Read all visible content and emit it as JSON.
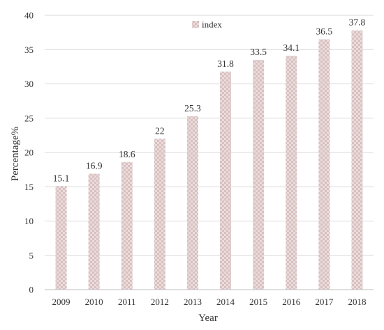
{
  "chart_data": {
    "type": "bar",
    "categories": [
      "2009",
      "2010",
      "2011",
      "2012",
      "2013",
      "2014",
      "2015",
      "2016",
      "2017",
      "2018"
    ],
    "series": [
      {
        "name": "index",
        "values": [
          15.1,
          16.9,
          18.6,
          22,
          25.3,
          31.8,
          33.5,
          34.1,
          36.5,
          37.8
        ],
        "labels": [
          "15.1",
          "16.9",
          "18.6",
          "22",
          "25.3",
          "31.8",
          "33.5",
          "34.1",
          "36.5",
          "37.8"
        ]
      }
    ],
    "title": "",
    "xlabel": "Year",
    "ylabel": "Percentage%",
    "ylim": [
      0,
      40
    ],
    "yticks": [
      "0",
      "5",
      "10",
      "15",
      "20",
      "25",
      "30",
      "35",
      "40"
    ],
    "grid": "horizontal",
    "legend_position": "top-center"
  },
  "colors": {
    "bar_light": "#eadcdc",
    "bar_dark": "#c9a9a9",
    "grid": "#d9d9d9",
    "axis": "#bfbfbf",
    "text": "#333333"
  }
}
